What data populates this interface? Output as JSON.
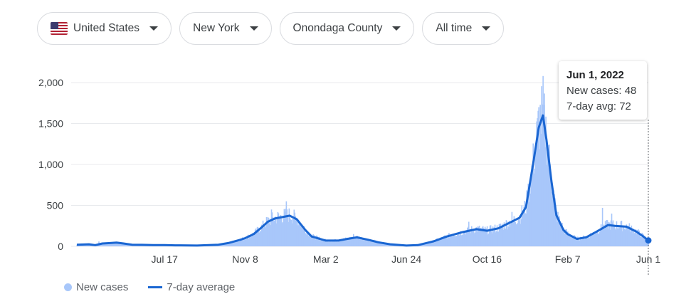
{
  "filters": {
    "country": "United States",
    "state": "New York",
    "county": "Onondaga County",
    "range": "All time"
  },
  "tooltip": {
    "date": "Jun 1, 2022",
    "new_cases_label": "New cases: 48",
    "avg_label": "7-day avg: 72"
  },
  "legend": {
    "new_cases": "New cases",
    "avg": "7-day average"
  },
  "colors": {
    "bars": "#a8c7fa",
    "line": "#1a66d2",
    "grid": "#e8eaed",
    "focus_dot": "#1a66d2"
  },
  "chart_data": {
    "type": "area",
    "title": "",
    "xlabel": "",
    "ylabel": "",
    "ylim": [
      0,
      2000
    ],
    "y_ticks": [
      0,
      500,
      1000,
      1500,
      2000
    ],
    "y_tick_labels": [
      "0",
      "500",
      "1,000",
      "1,500",
      "2,000"
    ],
    "x_ticks": [
      {
        "label": "Jul 17",
        "date": "2020-07-17"
      },
      {
        "label": "Nov 8",
        "date": "2020-11-08"
      },
      {
        "label": "Mar 2",
        "date": "2021-03-02"
      },
      {
        "label": "Jun 24",
        "date": "2021-06-24"
      },
      {
        "label": "Oct 16",
        "date": "2021-10-16"
      },
      {
        "label": "Feb 7",
        "date": "2022-02-07"
      },
      {
        "label": "Jun 1",
        "date": "2022-06-01"
      }
    ],
    "x_range": [
      "2020-03-15",
      "2022-06-01"
    ],
    "grid": true,
    "legend_position": "bottom-left",
    "series": [
      {
        "name": "7-day average",
        "style": "line",
        "points": [
          [
            "2020-03-15",
            20
          ],
          [
            "2020-04-01",
            25
          ],
          [
            "2020-04-10",
            15
          ],
          [
            "2020-04-20",
            35
          ],
          [
            "2020-05-01",
            40
          ],
          [
            "2020-05-10",
            45
          ],
          [
            "2020-05-20",
            35
          ],
          [
            "2020-06-01",
            20
          ],
          [
            "2020-06-15",
            18
          ],
          [
            "2020-07-01",
            15
          ],
          [
            "2020-07-17",
            15
          ],
          [
            "2020-08-01",
            12
          ],
          [
            "2020-09-01",
            10
          ],
          [
            "2020-10-01",
            20
          ],
          [
            "2020-10-15",
            40
          ],
          [
            "2020-11-01",
            80
          ],
          [
            "2020-11-08",
            100
          ],
          [
            "2020-11-20",
            150
          ],
          [
            "2020-12-01",
            230
          ],
          [
            "2020-12-10",
            300
          ],
          [
            "2020-12-20",
            340
          ],
          [
            "2021-01-01",
            360
          ],
          [
            "2021-01-10",
            375
          ],
          [
            "2021-01-20",
            330
          ],
          [
            "2021-02-01",
            200
          ],
          [
            "2021-02-10",
            120
          ],
          [
            "2021-03-02",
            70
          ],
          [
            "2021-03-20",
            70
          ],
          [
            "2021-04-01",
            90
          ],
          [
            "2021-04-15",
            110
          ],
          [
            "2021-05-01",
            80
          ],
          [
            "2021-05-15",
            50
          ],
          [
            "2021-06-01",
            25
          ],
          [
            "2021-06-24",
            10
          ],
          [
            "2021-07-10",
            15
          ],
          [
            "2021-08-01",
            60
          ],
          [
            "2021-08-20",
            120
          ],
          [
            "2021-09-10",
            170
          ],
          [
            "2021-10-01",
            210
          ],
          [
            "2021-10-16",
            190
          ],
          [
            "2021-11-01",
            220
          ],
          [
            "2021-11-15",
            280
          ],
          [
            "2021-12-01",
            350
          ],
          [
            "2021-12-10",
            480
          ],
          [
            "2021-12-20",
            1000
          ],
          [
            "2021-12-28",
            1450
          ],
          [
            "2022-01-03",
            1600
          ],
          [
            "2022-01-08",
            1300
          ],
          [
            "2022-01-15",
            800
          ],
          [
            "2022-01-22",
            380
          ],
          [
            "2022-02-01",
            200
          ],
          [
            "2022-02-07",
            150
          ],
          [
            "2022-02-20",
            90
          ],
          [
            "2022-03-05",
            110
          ],
          [
            "2022-03-20",
            180
          ],
          [
            "2022-04-05",
            260
          ],
          [
            "2022-04-15",
            250
          ],
          [
            "2022-05-01",
            240
          ],
          [
            "2022-05-15",
            180
          ],
          [
            "2022-05-25",
            120
          ],
          [
            "2022-06-01",
            72
          ]
        ]
      },
      {
        "name": "New cases",
        "style": "bars",
        "peaks": [
          [
            "2020-04-15",
            60
          ],
          [
            "2020-12-15",
            450
          ],
          [
            "2021-01-05",
            550
          ],
          [
            "2021-04-10",
            150
          ],
          [
            "2021-09-20",
            300
          ],
          [
            "2021-11-20",
            420
          ],
          [
            "2021-12-28",
            1700
          ],
          [
            "2022-01-03",
            2080
          ],
          [
            "2022-03-28",
            470
          ],
          [
            "2022-04-10",
            400
          ],
          [
            "2022-06-01",
            48
          ]
        ]
      }
    ],
    "focus": {
      "date": "2022-06-01",
      "new_cases": 48,
      "avg": 72
    }
  }
}
